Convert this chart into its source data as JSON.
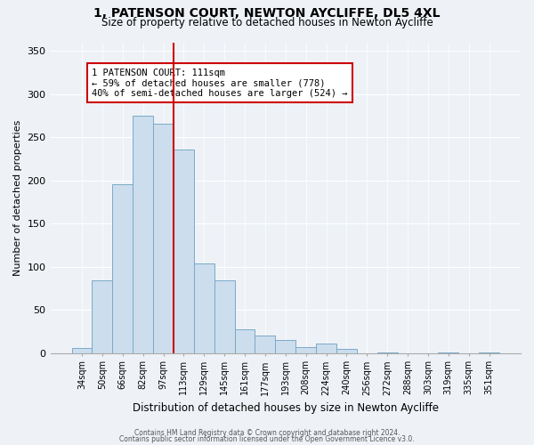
{
  "title": "1, PATENSON COURT, NEWTON AYCLIFFE, DL5 4XL",
  "subtitle": "Size of property relative to detached houses in Newton Aycliffe",
  "xlabel": "Distribution of detached houses by size in Newton Aycliffe",
  "ylabel": "Number of detached properties",
  "bar_labels": [
    "34sqm",
    "50sqm",
    "66sqm",
    "82sqm",
    "97sqm",
    "113sqm",
    "129sqm",
    "145sqm",
    "161sqm",
    "177sqm",
    "193sqm",
    "208sqm",
    "224sqm",
    "240sqm",
    "256sqm",
    "272sqm",
    "288sqm",
    "303sqm",
    "319sqm",
    "335sqm",
    "351sqm"
  ],
  "bar_values": [
    6,
    84,
    196,
    275,
    266,
    236,
    104,
    84,
    27,
    20,
    15,
    7,
    11,
    5,
    0,
    1,
    0,
    0,
    1,
    0,
    1
  ],
  "bar_color": "#ccdded",
  "bar_edge_color": "#7aaac8",
  "vline_color": "#cc0000",
  "annotation_title": "1 PATENSON COURT: 111sqm",
  "annotation_line1": "← 59% of detached houses are smaller (778)",
  "annotation_line2": "40% of semi-detached houses are larger (524) →",
  "annotation_box_color": "#cc0000",
  "ylim": [
    0,
    360
  ],
  "yticks": [
    0,
    50,
    100,
    150,
    200,
    250,
    300,
    350
  ],
  "footer1": "Contains HM Land Registry data © Crown copyright and database right 2024.",
  "footer2": "Contains public sector information licensed under the Open Government Licence v3.0.",
  "background_color": "#eef2f7",
  "plot_bg_color": "#eef2f7"
}
